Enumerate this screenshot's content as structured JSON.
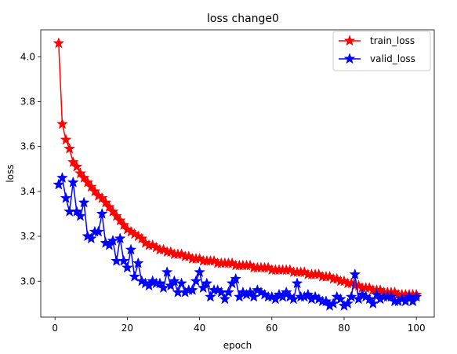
{
  "chart_data": {
    "type": "line",
    "title": "loss change0",
    "xlabel": "epoch",
    "ylabel": "loss",
    "xlim": [
      -3.95,
      104.95
    ],
    "ylim": [
      2.84,
      4.12
    ],
    "xticks": [
      0,
      20,
      40,
      60,
      80,
      100
    ],
    "xtick_labels": [
      "0",
      "20",
      "40",
      "60",
      "80",
      "100"
    ],
    "yticks": [
      3.0,
      3.2,
      3.4,
      3.6,
      3.8,
      4.0
    ],
    "ytick_labels": [
      "3.0",
      "3.2",
      "3.4",
      "3.6",
      "3.8",
      "4.0"
    ],
    "grid": false,
    "legend_position": "top-right",
    "x": [
      1,
      2,
      3,
      4,
      5,
      6,
      7,
      8,
      9,
      10,
      11,
      12,
      13,
      14,
      15,
      16,
      17,
      18,
      19,
      20,
      21,
      22,
      23,
      24,
      25,
      26,
      27,
      28,
      29,
      30,
      31,
      32,
      33,
      34,
      35,
      36,
      37,
      38,
      39,
      40,
      41,
      42,
      43,
      44,
      45,
      46,
      47,
      48,
      49,
      50,
      51,
      52,
      53,
      54,
      55,
      56,
      57,
      58,
      59,
      60,
      61,
      62,
      63,
      64,
      65,
      66,
      67,
      68,
      69,
      70,
      71,
      72,
      73,
      74,
      75,
      76,
      77,
      78,
      79,
      80,
      81,
      82,
      83,
      84,
      85,
      86,
      87,
      88,
      89,
      90,
      91,
      92,
      93,
      94,
      95,
      96,
      97,
      98,
      99,
      100
    ],
    "series": [
      {
        "name": "train_loss",
        "color": "#ff0000",
        "marker": "star",
        "values": [
          4.06,
          3.7,
          3.63,
          3.59,
          3.53,
          3.51,
          3.48,
          3.46,
          3.44,
          3.42,
          3.4,
          3.38,
          3.37,
          3.35,
          3.33,
          3.31,
          3.29,
          3.27,
          3.25,
          3.23,
          3.22,
          3.21,
          3.2,
          3.19,
          3.17,
          3.16,
          3.16,
          3.15,
          3.14,
          3.14,
          3.13,
          3.13,
          3.12,
          3.12,
          3.12,
          3.11,
          3.11,
          3.1,
          3.1,
          3.1,
          3.09,
          3.09,
          3.09,
          3.09,
          3.08,
          3.08,
          3.08,
          3.08,
          3.08,
          3.07,
          3.07,
          3.07,
          3.07,
          3.07,
          3.06,
          3.06,
          3.06,
          3.06,
          3.06,
          3.05,
          3.05,
          3.05,
          3.05,
          3.05,
          3.05,
          3.04,
          3.04,
          3.04,
          3.04,
          3.03,
          3.03,
          3.03,
          3.03,
          3.02,
          3.02,
          3.02,
          3.01,
          3.01,
          3.0,
          3.0,
          2.99,
          2.99,
          2.98,
          2.98,
          2.97,
          2.97,
          2.97,
          2.96,
          2.96,
          2.96,
          2.95,
          2.95,
          2.95,
          2.95,
          2.94,
          2.94,
          2.94,
          2.94,
          2.94,
          2.94
        ]
      },
      {
        "name": "valid_loss",
        "color": "#0000ff",
        "marker": "star",
        "values": [
          3.43,
          3.46,
          3.37,
          3.31,
          3.44,
          3.31,
          3.29,
          3.35,
          3.2,
          3.19,
          3.22,
          3.22,
          3.3,
          3.17,
          3.16,
          3.18,
          3.09,
          3.19,
          3.09,
          3.06,
          3.14,
          3.02,
          3.08,
          3.0,
          2.99,
          2.98,
          3.0,
          2.99,
          2.99,
          2.97,
          3.04,
          2.98,
          3.0,
          2.95,
          2.99,
          2.95,
          2.96,
          2.96,
          3.0,
          3.04,
          2.97,
          2.99,
          2.93,
          2.96,
          2.96,
          2.95,
          2.92,
          2.95,
          2.99,
          3.01,
          2.93,
          2.95,
          2.94,
          2.95,
          2.93,
          2.96,
          2.95,
          2.94,
          2.93,
          2.93,
          2.92,
          2.94,
          2.93,
          2.95,
          2.93,
          2.92,
          2.99,
          2.93,
          2.93,
          2.94,
          2.92,
          2.93,
          2.92,
          2.91,
          2.91,
          2.89,
          2.9,
          2.93,
          2.92,
          2.89,
          2.9,
          2.93,
          3.03,
          2.92,
          2.94,
          2.93,
          2.92,
          2.9,
          2.94,
          2.92,
          2.93,
          2.93,
          2.93,
          2.91,
          2.91,
          2.92,
          2.91,
          2.93,
          2.91,
          2.93
        ]
      }
    ]
  }
}
